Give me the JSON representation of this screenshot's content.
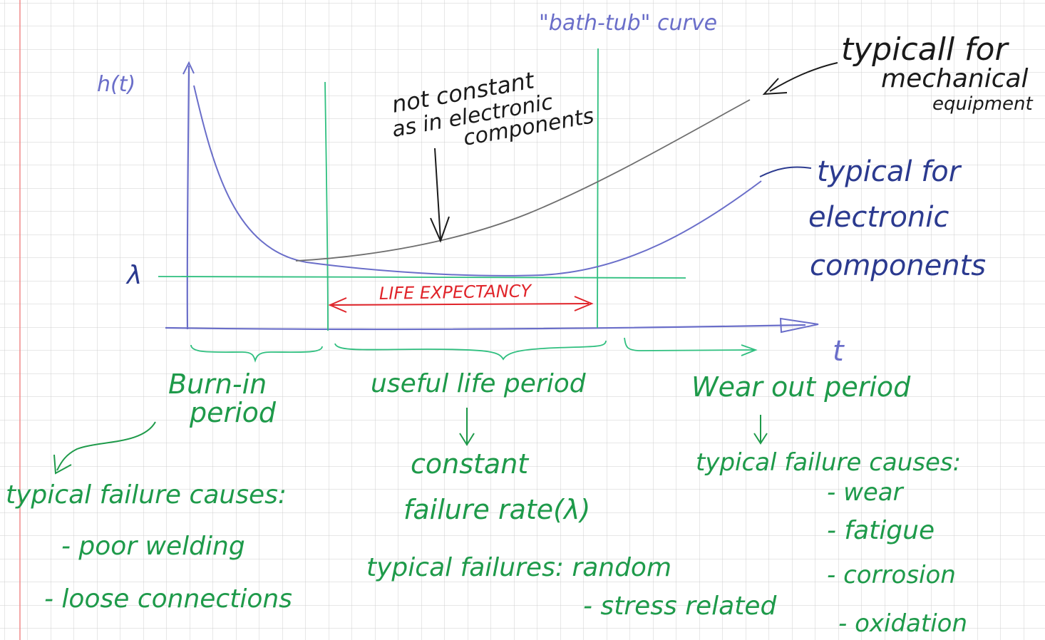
{
  "colors": {
    "grid": "#cfcfcf",
    "margin_line": "#f08a8a",
    "curve_electronic": "#6a6ec9",
    "curve_mechanical": "#6e6e6e",
    "guides": "#2fbf7f",
    "green_text": "#1e9a4a",
    "blue_text": "#2b3a8f",
    "red_text": "#e0242a",
    "black_text": "#1a1a1a"
  },
  "axes": {
    "y_label": "h(t)",
    "x_label": "t",
    "lambda_label": "λ"
  },
  "header": {
    "bathtub_label": "\"bath-tub\" curve"
  },
  "annotations": {
    "mechanical": [
      "typicall for",
      "mechanical",
      "equipment"
    ],
    "electronic": [
      "typical for",
      "electronic",
      "components"
    ],
    "not_constant": [
      "not constant",
      "as in electronic",
      "components"
    ],
    "life_expectancy": "LIFE EXPECTANCY"
  },
  "periods": {
    "burn_in": {
      "title": [
        "Burn-in",
        "period"
      ],
      "causes_title": "typical failure causes:",
      "causes": [
        "- poor welding",
        "- loose connections"
      ]
    },
    "useful_life": {
      "title": "useful life period",
      "detail": [
        "constant",
        "failure rate(λ)"
      ],
      "failures_title": "typical failures: random",
      "failures_extra": "- stress related"
    },
    "wear_out": {
      "title": "Wear out period",
      "causes_title": "typical failure causes:",
      "causes": [
        "- wear",
        "- fatigue",
        "- corrosion",
        "- oxidation"
      ]
    }
  }
}
